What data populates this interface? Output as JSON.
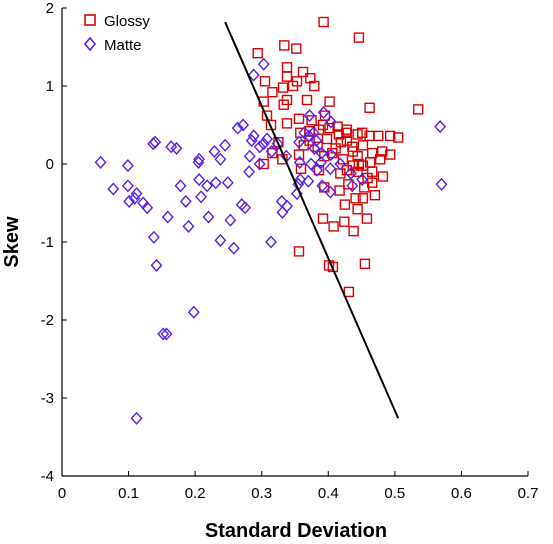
{
  "chart_data": {
    "type": "scatter",
    "xlabel": "Standard Deviation",
    "ylabel": "Skew",
    "xlim": [
      0,
      0.7
    ],
    "ylim": [
      -4,
      2
    ],
    "xticks": [
      "0",
      "0.1",
      "0.2",
      "0.3",
      "0.4",
      "0.5",
      "0.6",
      "0.7"
    ],
    "yticks": [
      "-4",
      "-3",
      "-2",
      "-1",
      "0",
      "1",
      "2"
    ],
    "legend_position": "top-left",
    "grid": false,
    "series": [
      {
        "name": "Glossy",
        "marker": "square",
        "color": "#dd0000",
        "points": [
          [
            0.393,
            1.82
          ],
          [
            0.446,
            1.62
          ],
          [
            0.334,
            1.52
          ],
          [
            0.352,
            1.48
          ],
          [
            0.294,
            1.42
          ],
          [
            0.338,
            1.24
          ],
          [
            0.362,
            1.18
          ],
          [
            0.338,
            1.12
          ],
          [
            0.373,
            1.1
          ],
          [
            0.305,
            1.06
          ],
          [
            0.353,
            1.06
          ],
          [
            0.379,
            1.0
          ],
          [
            0.347,
            1.0
          ],
          [
            0.332,
            0.98
          ],
          [
            0.316,
            0.92
          ],
          [
            0.368,
            0.82
          ],
          [
            0.338,
            0.82
          ],
          [
            0.303,
            0.8
          ],
          [
            0.333,
            0.76
          ],
          [
            0.402,
            0.8
          ],
          [
            0.462,
            0.72
          ],
          [
            0.535,
            0.7
          ],
          [
            0.395,
            0.62
          ],
          [
            0.308,
            0.62
          ],
          [
            0.356,
            0.58
          ],
          [
            0.375,
            0.56
          ],
          [
            0.392,
            0.5
          ],
          [
            0.414,
            0.48
          ],
          [
            0.428,
            0.44
          ],
          [
            0.338,
            0.52
          ],
          [
            0.314,
            0.5
          ],
          [
            0.402,
            0.46
          ],
          [
            0.386,
            0.44
          ],
          [
            0.372,
            0.42
          ],
          [
            0.358,
            0.4
          ],
          [
            0.451,
            0.4
          ],
          [
            0.444,
            0.38
          ],
          [
            0.462,
            0.36
          ],
          [
            0.475,
            0.36
          ],
          [
            0.493,
            0.36
          ],
          [
            0.505,
            0.34
          ],
          [
            0.416,
            0.38
          ],
          [
            0.428,
            0.3
          ],
          [
            0.398,
            0.32
          ],
          [
            0.372,
            0.3
          ],
          [
            0.325,
            0.28
          ],
          [
            0.363,
            0.24
          ],
          [
            0.384,
            0.22
          ],
          [
            0.411,
            0.2
          ],
          [
            0.452,
            0.24
          ],
          [
            0.437,
            0.16
          ],
          [
            0.466,
            0.14
          ],
          [
            0.481,
            0.16
          ],
          [
            0.493,
            0.12
          ],
          [
            0.478,
            0.06
          ],
          [
            0.463,
            0.02
          ],
          [
            0.446,
            0.0
          ],
          [
            0.437,
            -0.02
          ],
          [
            0.422,
            0.06
          ],
          [
            0.406,
            0.14
          ],
          [
            0.394,
            0.1
          ],
          [
            0.356,
            0.12
          ],
          [
            0.331,
            0.06
          ],
          [
            0.316,
            0.14
          ],
          [
            0.303,
            0.0
          ],
          [
            0.359,
            -0.06
          ],
          [
            0.386,
            -0.08
          ],
          [
            0.418,
            -0.12
          ],
          [
            0.444,
            -0.1
          ],
          [
            0.459,
            -0.18
          ],
          [
            0.482,
            -0.16
          ],
          [
            0.466,
            -0.24
          ],
          [
            0.454,
            -0.3
          ],
          [
            0.43,
            -0.26
          ],
          [
            0.417,
            -0.34
          ],
          [
            0.394,
            -0.3
          ],
          [
            0.441,
            -0.44
          ],
          [
            0.425,
            -0.52
          ],
          [
            0.444,
            -0.58
          ],
          [
            0.458,
            -0.7
          ],
          [
            0.424,
            -0.74
          ],
          [
            0.438,
            -0.86
          ],
          [
            0.408,
            -0.8
          ],
          [
            0.392,
            -0.7
          ],
          [
            0.356,
            -1.12
          ],
          [
            0.401,
            -1.3
          ],
          [
            0.407,
            -1.32
          ],
          [
            0.455,
            -1.28
          ],
          [
            0.431,
            -1.64
          ],
          [
            0.428,
            -0.08
          ],
          [
            0.452,
            -0.02
          ],
          [
            0.47,
            -0.4
          ],
          [
            0.436,
            0.22
          ],
          [
            0.419,
            0.28
          ],
          [
            0.427,
            0.4
          ],
          [
            0.444,
            0.1
          ],
          [
            0.466,
            -0.1
          ],
          [
            0.452,
            -0.44
          ]
        ]
      },
      {
        "name": "Matte",
        "marker": "diamond",
        "color": "#5a1ee6",
        "points": [
          [
            0.303,
            1.28
          ],
          [
            0.288,
            1.14
          ],
          [
            0.272,
            0.5
          ],
          [
            0.264,
            0.46
          ],
          [
            0.288,
            0.36
          ],
          [
            0.285,
            0.3
          ],
          [
            0.308,
            0.32
          ],
          [
            0.303,
            0.26
          ],
          [
            0.297,
            0.22
          ],
          [
            0.282,
            0.1
          ],
          [
            0.297,
            0.0
          ],
          [
            0.281,
            -0.1
          ],
          [
            0.315,
            0.16
          ],
          [
            0.337,
            0.1
          ],
          [
            0.357,
            0.02
          ],
          [
            0.374,
            0.0
          ],
          [
            0.39,
            0.14
          ],
          [
            0.404,
            0.12
          ],
          [
            0.418,
            0.0
          ],
          [
            0.356,
            0.28
          ],
          [
            0.364,
            0.4
          ],
          [
            0.371,
            0.36
          ],
          [
            0.382,
            0.3
          ],
          [
            0.372,
            0.62
          ],
          [
            0.393,
            0.66
          ],
          [
            0.568,
            0.48
          ],
          [
            0.57,
            -0.26
          ],
          [
            0.14,
            0.28
          ],
          [
            0.137,
            0.26
          ],
          [
            0.164,
            0.22
          ],
          [
            0.172,
            0.2
          ],
          [
            0.058,
            0.02
          ],
          [
            0.099,
            -0.02
          ],
          [
            0.077,
            -0.32
          ],
          [
            0.099,
            -0.28
          ],
          [
            0.112,
            -0.38
          ],
          [
            0.122,
            -0.5
          ],
          [
            0.128,
            -0.56
          ],
          [
            0.101,
            -0.48
          ],
          [
            0.109,
            -0.44
          ],
          [
            0.178,
            -0.28
          ],
          [
            0.159,
            -0.68
          ],
          [
            0.138,
            -0.94
          ],
          [
            0.186,
            -0.48
          ],
          [
            0.19,
            -0.8
          ],
          [
            0.205,
            0.02
          ],
          [
            0.206,
            0.06
          ],
          [
            0.206,
            -0.2
          ],
          [
            0.209,
            -0.42
          ],
          [
            0.22,
            -0.68
          ],
          [
            0.218,
            -0.28
          ],
          [
            0.231,
            -0.24
          ],
          [
            0.229,
            0.16
          ],
          [
            0.245,
            0.24
          ],
          [
            0.238,
            0.06
          ],
          [
            0.249,
            -0.24
          ],
          [
            0.253,
            -0.72
          ],
          [
            0.238,
            -0.98
          ],
          [
            0.258,
            -1.08
          ],
          [
            0.27,
            -0.52
          ],
          [
            0.275,
            -0.56
          ],
          [
            0.314,
            -1.0
          ],
          [
            0.33,
            -0.48
          ],
          [
            0.338,
            -0.54
          ],
          [
            0.331,
            -0.62
          ],
          [
            0.355,
            -0.26
          ],
          [
            0.358,
            -0.2
          ],
          [
            0.37,
            -0.22
          ],
          [
            0.353,
            -0.38
          ],
          [
            0.142,
            -1.3
          ],
          [
            0.152,
            -2.18
          ],
          [
            0.157,
            -2.18
          ],
          [
            0.198,
            -1.9
          ],
          [
            0.112,
            -3.26
          ],
          [
            0.383,
            -0.08
          ],
          [
            0.391,
            -0.28
          ],
          [
            0.403,
            -0.36
          ],
          [
            0.436,
            -0.28
          ],
          [
            0.451,
            -0.2
          ],
          [
            0.434,
            -0.12
          ],
          [
            0.403,
            -0.06
          ],
          [
            0.389,
            0.02
          ],
          [
            0.379,
            0.2
          ],
          [
            0.378,
            0.4
          ],
          [
            0.404,
            0.54
          ],
          [
            0.324,
            0.26
          ]
        ]
      }
    ],
    "line": {
      "color": "#000000",
      "points": [
        [
          0.245,
          1.82
        ],
        [
          0.505,
          -3.26
        ]
      ]
    }
  }
}
